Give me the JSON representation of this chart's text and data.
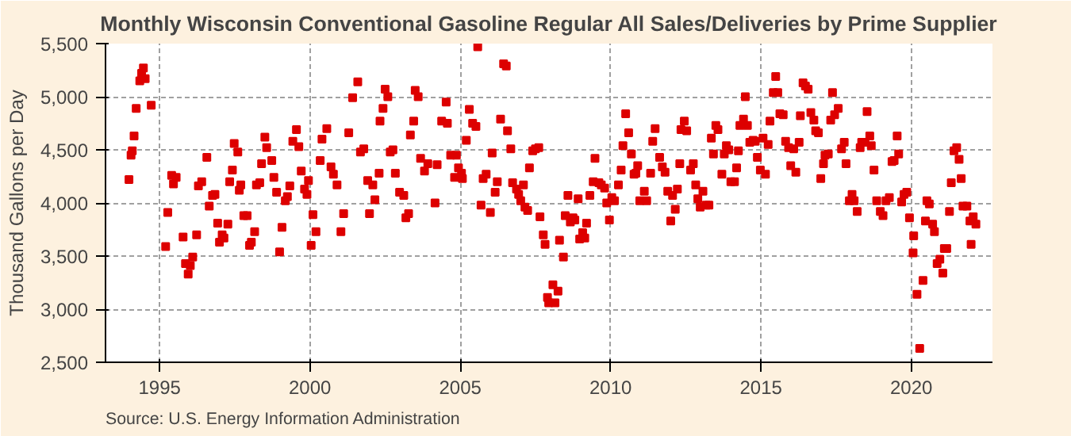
{
  "chart_data": {
    "type": "scatter",
    "title": "Monthly Wisconsin Conventional Gasoline Regular All Sales/Deliveries by Prime Supplier",
    "ylabel": "Thousand Gallons per Day",
    "annotations": [
      "Source: U.S. Energy Information Administration"
    ],
    "xlim": [
      1993.2,
      2022.7
    ],
    "xticks": [
      1995,
      2000,
      2005,
      2010,
      2015,
      2020
    ],
    "ylim": [
      2500,
      5500
    ],
    "yticks": [
      {
        "value": 2500,
        "label": "2,500"
      },
      {
        "value": 3000,
        "label": "3,000"
      },
      {
        "value": 3500,
        "label": "3,500"
      },
      {
        "value": 4000,
        "label": "4,000"
      },
      {
        "value": 4500,
        "label": "4,500"
      },
      {
        "value": 5000,
        "label": "5,000"
      },
      {
        "value": 5500,
        "label": "5,500"
      }
    ],
    "grid": true,
    "marker": "square",
    "series": [
      {
        "color": "#dd0000",
        "x": [
          1993.98,
          1994.05,
          1994.09,
          1994.15,
          1994.22,
          1994.34,
          1994.4,
          1994.46,
          1994.52,
          1994.72,
          1995.2,
          1995.27,
          1995.4,
          1995.46,
          1995.55,
          1995.78,
          1995.86,
          1995.95,
          1996.02,
          1996.1,
          1996.23,
          1996.29,
          1996.4,
          1996.57,
          1996.65,
          1996.76,
          1996.84,
          1996.93,
          1996.99,
          1997.08,
          1997.14,
          1997.27,
          1997.33,
          1997.42,
          1997.48,
          1997.6,
          1997.65,
          1997.7,
          1997.8,
          1997.91,
          1997.99,
          1998.05,
          1998.16,
          1998.22,
          1998.33,
          1998.39,
          1998.5,
          1998.56,
          1998.73,
          1998.8,
          1998.89,
          1998.99,
          1999.07,
          1999.18,
          1999.25,
          1999.33,
          1999.43,
          1999.55,
          1999.63,
          1999.71,
          1999.82,
          1999.9,
          1999.95,
          2000.04,
          2000.1,
          2000.2,
          2000.34,
          2000.4,
          2000.56,
          2000.7,
          2000.78,
          2000.9,
          2001.03,
          2001.12,
          2001.29,
          2001.42,
          2001.59,
          2001.68,
          2001.79,
          2001.92,
          2001.98,
          2002.09,
          2002.16,
          2002.3,
          2002.33,
          2002.43,
          2002.5,
          2002.59,
          2002.67,
          2002.76,
          2002.84,
          2002.98,
          2003.12,
          2003.19,
          2003.28,
          2003.34,
          2003.45,
          2003.5,
          2003.6,
          2003.68,
          2003.81,
          2003.92,
          2004.16,
          2004.23,
          2004.38,
          2004.53,
          2004.57,
          2004.68,
          2004.81,
          2004.87,
          2004.94,
          2005.04,
          2005.07,
          2005.2,
          2005.3,
          2005.41,
          2005.52,
          2005.58,
          2005.69,
          2005.76,
          2005.86,
          2006.0,
          2006.06,
          2006.16,
          2006.23,
          2006.34,
          2006.44,
          2006.53,
          2006.57,
          2006.68,
          2006.74,
          2006.87,
          2006.94,
          2007.01,
          2007.1,
          2007.15,
          2007.24,
          2007.3,
          2007.41,
          2007.5,
          2007.61,
          2007.65,
          2007.76,
          2007.82,
          2007.9,
          2007.94,
          2008.08,
          2008.15,
          2008.25,
          2008.3,
          2008.43,
          2008.49,
          2008.58,
          2008.66,
          2008.75,
          2008.81,
          2008.92,
          2008.97,
          2009.07,
          2009.14,
          2009.2,
          2009.31,
          2009.42,
          2009.48,
          2009.61,
          2009.69,
          2009.8,
          2009.87,
          2009.96,
          2010.04,
          2010.13,
          2010.26,
          2010.35,
          2010.41,
          2010.5,
          2010.6,
          2010.69,
          2010.78,
          2010.84,
          2010.9,
          2010.97,
          2011.12,
          2011.2,
          2011.33,
          2011.4,
          2011.48,
          2011.63,
          2011.72,
          2011.81,
          2011.9,
          2012.0,
          2012.06,
          2012.15,
          2012.22,
          2012.3,
          2012.34,
          2012.45,
          2012.53,
          2012.66,
          2012.75,
          2012.83,
          2012.9,
          2012.98,
          2013.07,
          2013.18,
          2013.27,
          2013.35,
          2013.42,
          2013.5,
          2013.57,
          2013.7,
          2013.78,
          2013.85,
          2013.93,
          2014.0,
          2014.12,
          2014.19,
          2014.25,
          2014.3,
          2014.42,
          2014.48,
          2014.55,
          2014.63,
          2014.74,
          2014.81,
          2014.88,
          2014.98,
          2015.07,
          2015.15,
          2015.24,
          2015.3,
          2015.41,
          2015.49,
          2015.56,
          2015.63,
          2015.74,
          2015.82,
          2015.92,
          2015.99,
          2016.09,
          2016.16,
          2016.27,
          2016.31,
          2016.4,
          2016.48,
          2016.57,
          2016.66,
          2016.76,
          2016.82,
          2016.91,
          2016.99,
          2017.08,
          2017.13,
          2017.24,
          2017.32,
          2017.38,
          2017.45,
          2017.57,
          2017.68,
          2017.77,
          2017.83,
          2017.94,
          2018.03,
          2018.1,
          2018.2,
          2018.3,
          2018.35,
          2018.46,
          2018.53,
          2018.62,
          2018.67,
          2018.76,
          2018.85,
          2018.97,
          2019.06,
          2019.16,
          2019.27,
          2019.36,
          2019.43,
          2019.53,
          2019.58,
          2019.68,
          2019.76,
          2019.85,
          2019.94,
          2020.06,
          2020.08,
          2020.19,
          2020.28,
          2020.39,
          2020.47,
          2020.52,
          2020.6,
          2020.71,
          2020.77,
          2020.86,
          2020.95,
          2021.05,
          2021.1,
          2021.18,
          2021.27,
          2021.33,
          2021.42,
          2021.51,
          2021.59,
          2021.66,
          2021.72,
          2021.85,
          2021.95,
          2021.99,
          2022.06,
          2022.15
        ],
        "values": [
          4220,
          4450,
          4490,
          4630,
          4890,
          5150,
          5220,
          5270,
          5170,
          4920,
          3590,
          3910,
          4260,
          4180,
          4240,
          3680,
          3430,
          3330,
          3410,
          3490,
          3700,
          4160,
          4200,
          4430,
          3970,
          4070,
          4080,
          3810,
          3630,
          3700,
          3670,
          3800,
          4200,
          4310,
          4560,
          4480,
          4120,
          4170,
          3880,
          3880,
          3600,
          3630,
          3730,
          4170,
          4190,
          4370,
          4620,
          4520,
          4400,
          4240,
          4100,
          3540,
          3770,
          4020,
          4060,
          4160,
          4580,
          4690,
          4530,
          4300,
          4130,
          4080,
          4210,
          3600,
          3890,
          3730,
          4400,
          4600,
          4700,
          4340,
          4270,
          4170,
          3730,
          3900,
          4660,
          4990,
          5140,
          4480,
          4510,
          4210,
          3900,
          4170,
          4030,
          4280,
          4770,
          4890,
          5070,
          5000,
          4480,
          4500,
          4280,
          4100,
          4070,
          3860,
          3900,
          4640,
          4770,
          5060,
          5000,
          4420,
          4300,
          4370,
          4000,
          4360,
          4770,
          4950,
          4750,
          4450,
          4240,
          4450,
          4330,
          4280,
          4230,
          4590,
          4880,
          4750,
          4720,
          5470,
          3980,
          4230,
          4270,
          3910,
          4470,
          4100,
          4200,
          4790,
          5310,
          5290,
          4680,
          4510,
          4190,
          4130,
          4080,
          4020,
          4170,
          3960,
          3930,
          4330,
          4490,
          4510,
          4520,
          3870,
          3700,
          3610,
          3110,
          3060,
          3230,
          3060,
          3170,
          3650,
          3490,
          3880,
          4070,
          3820,
          3860,
          3840,
          4040,
          3660,
          3720,
          3670,
          3810,
          4070,
          4200,
          4420,
          4190,
          4170,
          4140,
          4000,
          3840,
          4050,
          4020,
          4170,
          4310,
          4540,
          4840,
          4660,
          4460,
          4270,
          4280,
          4350,
          4020,
          4110,
          4020,
          4280,
          4580,
          4700,
          4430,
          4340,
          4290,
          4110,
          3830,
          4070,
          3940,
          4130,
          4370,
          4690,
          4770,
          4680,
          4310,
          4370,
          4170,
          4040,
          3960,
          4110,
          3980,
          3980,
          4610,
          4460,
          4730,
          4690,
          4270,
          4460,
          4540,
          4500,
          4200,
          4200,
          4330,
          4490,
          4730,
          4790,
          5000,
          4730,
          4570,
          4590,
          4580,
          4430,
          4310,
          4610,
          4270,
          4550,
          4770,
          5040,
          5190,
          5040,
          4840,
          4830,
          4580,
          4520,
          4350,
          4510,
          4290,
          4570,
          4820,
          5130,
          5100,
          5070,
          4850,
          4780,
          4680,
          4660,
          4230,
          4370,
          4450,
          4460,
          4780,
          5040,
          4830,
          4890,
          4510,
          4570,
          4370,
          4020,
          4080,
          4020,
          3920,
          4520,
          4570,
          4570,
          4860,
          4630,
          4540,
          4310,
          4020,
          3920,
          3880,
          4020,
          4050,
          4390,
          4400,
          4630,
          4460,
          4010,
          4080,
          4100,
          3860,
          3530,
          3690,
          3140,
          2630,
          3270,
          3830,
          4020,
          3990,
          3800,
          3730,
          3430,
          3470,
          3340,
          3570,
          3570,
          3920,
          4190,
          4490,
          4520,
          4410,
          4230,
          3970,
          3970,
          3830,
          3610,
          3870,
          3800
        ]
      }
    ]
  }
}
